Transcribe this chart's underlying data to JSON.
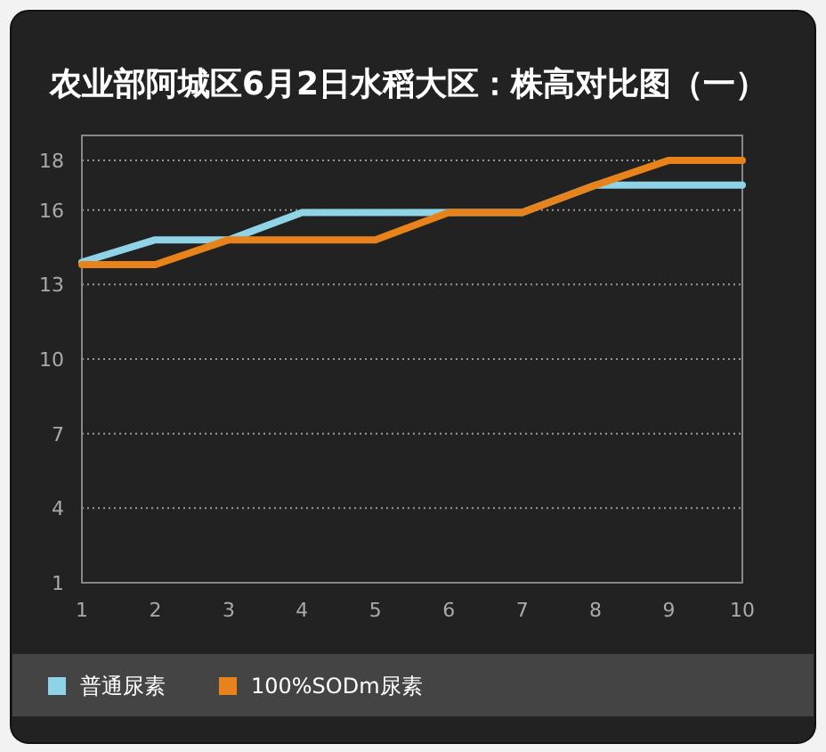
{
  "chart_data": {
    "type": "line",
    "title": "农业部阿城区6月2日水稻大区：株高对比图（一）",
    "categories": [
      "1",
      "2",
      "3",
      "4",
      "5",
      "6",
      "7",
      "8",
      "9",
      "10"
    ],
    "series": [
      {
        "name": "普通尿素",
        "color": "#8fd3e6",
        "values": [
          13.9,
          14.8,
          14.8,
          15.9,
          15.9,
          15.9,
          15.9,
          17,
          17,
          17
        ]
      },
      {
        "name": "100%SODm尿素",
        "color": "#e8821a",
        "values": [
          13.8,
          13.8,
          14.8,
          14.8,
          14.8,
          15.9,
          15.9,
          17,
          18,
          18
        ]
      }
    ],
    "ylim": [
      1,
      19
    ],
    "yticks": [
      1,
      4,
      7,
      10,
      13,
      16,
      18
    ],
    "grid": "y",
    "legend": "bottom",
    "marker": "none",
    "line_style": "solid"
  }
}
